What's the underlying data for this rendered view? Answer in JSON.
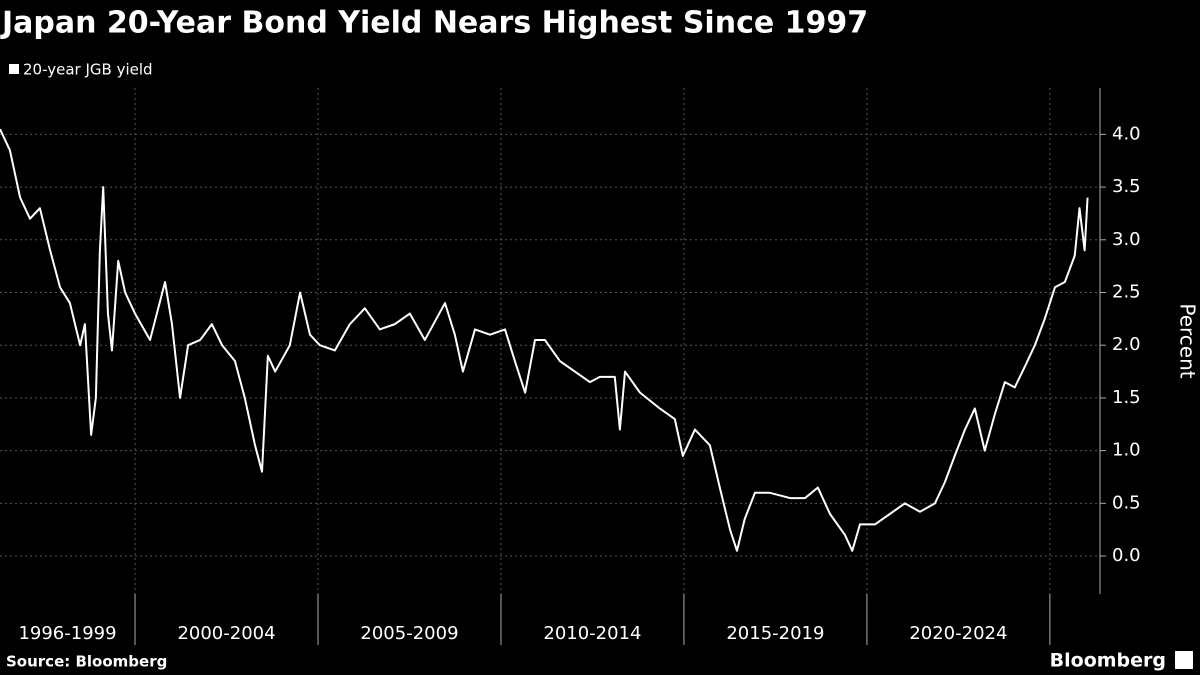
{
  "chart_data": {
    "type": "line",
    "title": "Japan 20-Year Bond Yield Nears Highest Since 1997",
    "y_label": "Percent",
    "source": "Source: Bloomberg",
    "brand": "Bloomberg",
    "x": [
      1996.31,
      1996.58,
      1996.86,
      1997.13,
      1997.4,
      1997.68,
      1997.95,
      1998.22,
      1998.5,
      1998.63,
      1998.8,
      1998.93,
      1999.04,
      1999.13,
      1999.26,
      1999.37,
      1999.54,
      1999.73,
      2000.0,
      2000.41,
      2000.82,
      2001.01,
      2001.23,
      2001.45,
      2001.78,
      2002.1,
      2002.38,
      2002.73,
      2003.0,
      2003.28,
      2003.47,
      2003.63,
      2003.83,
      2004.23,
      2004.51,
      2004.78,
      2005.05,
      2005.46,
      2005.87,
      2006.28,
      2006.69,
      2007.1,
      2007.51,
      2007.92,
      2008.47,
      2008.74,
      2008.96,
      2009.29,
      2009.7,
      2010.11,
      2010.38,
      2010.66,
      2010.93,
      2011.2,
      2011.61,
      2012.02,
      2012.43,
      2012.7,
      2013.11,
      2013.25,
      2013.39,
      2013.8,
      2014.34,
      2014.75,
      2014.97,
      2015.3,
      2015.71,
      2015.98,
      2016.26,
      2016.45,
      2016.66,
      2016.94,
      2017.35,
      2017.9,
      2018.31,
      2018.66,
      2018.99,
      2019.4,
      2019.6,
      2019.81,
      2020.22,
      2020.63,
      2021.04,
      2021.45,
      2021.86,
      2022.13,
      2022.4,
      2022.68,
      2022.95,
      2023.22,
      2023.5,
      2023.77,
      2024.04,
      2024.32,
      2024.59,
      2024.86,
      2025.14,
      2025.41,
      2025.68,
      2025.81,
      2025.95,
      2026.03
    ],
    "series": [
      {
        "name": "20-year JGB yield",
        "color": "#ffffff",
        "values": [
          4.05,
          3.85,
          3.4,
          3.2,
          3.3,
          2.9,
          2.55,
          2.4,
          2.0,
          2.2,
          1.15,
          1.5,
          2.9,
          3.5,
          2.3,
          1.95,
          2.8,
          2.5,
          2.3,
          2.05,
          2.6,
          2.2,
          1.5,
          2.0,
          2.05,
          2.2,
          2.0,
          1.85,
          1.5,
          1.05,
          0.8,
          1.9,
          1.75,
          2.0,
          2.5,
          2.1,
          2.0,
          1.95,
          2.2,
          2.35,
          2.15,
          2.2,
          2.3,
          2.05,
          2.4,
          2.1,
          1.75,
          2.15,
          2.1,
          2.15,
          1.85,
          1.55,
          2.05,
          2.05,
          1.85,
          1.75,
          1.65,
          1.7,
          1.7,
          1.2,
          1.75,
          1.55,
          1.4,
          1.3,
          0.95,
          1.2,
          1.05,
          0.65,
          0.25,
          0.05,
          0.35,
          0.6,
          0.6,
          0.55,
          0.55,
          0.65,
          0.4,
          0.2,
          0.05,
          0.3,
          0.3,
          0.4,
          0.5,
          0.42,
          0.5,
          0.7,
          0.95,
          1.2,
          1.4,
          1.0,
          1.35,
          1.65,
          1.6,
          1.8,
          2.0,
          2.25,
          2.55,
          2.6,
          2.85,
          3.3,
          2.9,
          3.4
        ]
      }
    ],
    "xlim": [
      1996.31,
      2026.37
    ],
    "xticks": [
      2000,
      2005,
      2010,
      2015,
      2020,
      2025
    ],
    "x_period_labels": [
      "1996-1999",
      "2000-2004",
      "2005-2009",
      "2010-2014",
      "2015-2019",
      "2020-2024"
    ],
    "ylim": [
      -0.36,
      4.44
    ],
    "yticks": [
      {
        "value": 0,
        "label": "0.0"
      },
      {
        "value": 0.5,
        "label": "0.5"
      },
      {
        "value": 1,
        "label": "1.0"
      },
      {
        "value": 1.5,
        "label": "1.5"
      },
      {
        "value": 2,
        "label": "2.0"
      },
      {
        "value": 2.5,
        "label": "2.5"
      },
      {
        "value": 3,
        "label": "3.0"
      },
      {
        "value": 3.5,
        "label": "3.5"
      },
      {
        "value": 4,
        "label": "4.0"
      }
    ],
    "grid": true
  }
}
